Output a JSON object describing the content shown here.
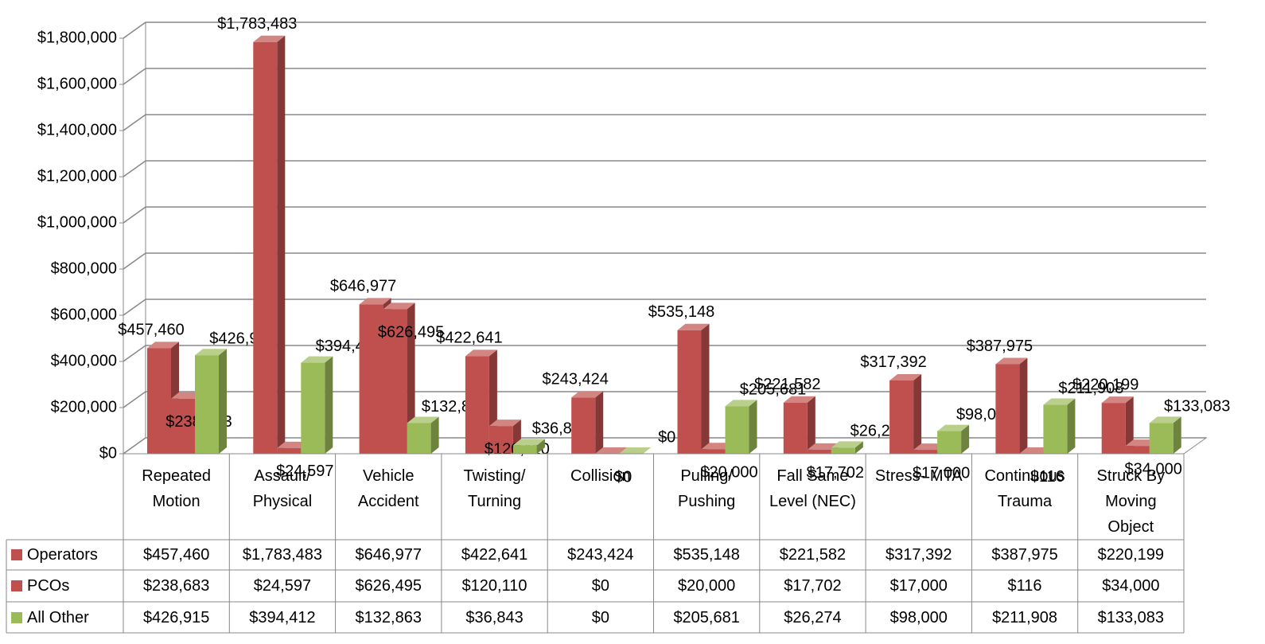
{
  "chart_data": {
    "type": "bar3d",
    "categories": [
      "Repeated Motion",
      "Assault/ Physical",
      "Vehicle Accident",
      "Twisting/ Turning",
      "Collision",
      "Pulling/ Pushing",
      "Fall Same Level (NEC)",
      "Stress- MTA",
      "Continuous Trauma",
      "Struck By Moving Object"
    ],
    "series": [
      {
        "name": "Operators",
        "color": "#c0504d",
        "values": [
          457460,
          1783483,
          646977,
          422641,
          243424,
          535148,
          221582,
          317392,
          387975,
          220199
        ],
        "value_labels": [
          "$457,460",
          "$1,783,483",
          "$646,977",
          "$422,641",
          "$243,424",
          "$535,148",
          "$221,582",
          "$317,392",
          "$387,975",
          "$220,199"
        ]
      },
      {
        "name": "PCOs",
        "color": "#c0504d",
        "values": [
          238683,
          24597,
          626495,
          120110,
          0,
          20000,
          17702,
          17000,
          116,
          34000
        ],
        "value_labels": [
          "$238,683",
          "$24,597",
          "$626,495",
          "$120,110",
          "$0",
          "$20,000",
          "$17,702",
          "$17,000",
          "$116",
          "$34,000"
        ]
      },
      {
        "name": "All Other",
        "color": "#9bbb59",
        "values": [
          426915,
          394412,
          132863,
          36843,
          0,
          205681,
          26274,
          98000,
          211908,
          133083
        ],
        "value_labels": [
          "$426,915",
          "$394,412",
          "$132,863",
          "$36,843",
          "$0",
          "$205,681",
          "$26,274",
          "$98,000",
          "$211,908",
          "$133,083"
        ]
      }
    ],
    "ylim": [
      0,
      1800000
    ],
    "yticks": [
      {
        "value": 0,
        "label": "$0"
      },
      {
        "value": 200000,
        "label": "$200,000"
      },
      {
        "value": 400000,
        "label": "$400,000"
      },
      {
        "value": 600000,
        "label": "$600,000"
      },
      {
        "value": 800000,
        "label": "$800,000"
      },
      {
        "value": 1000000,
        "label": "$1,000,000"
      },
      {
        "value": 1200000,
        "label": "$1,200,000"
      },
      {
        "value": 1400000,
        "label": "$1,400,000"
      },
      {
        "value": 1600000,
        "label": "$1,600,000"
      },
      {
        "value": 1800000,
        "label": "$1,800,000"
      }
    ],
    "grid": true
  }
}
